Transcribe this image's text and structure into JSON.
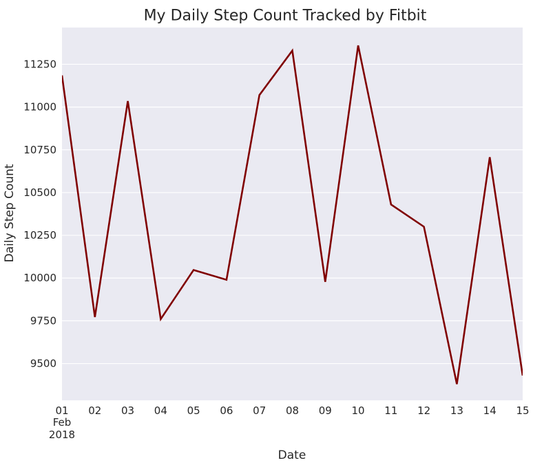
{
  "chart_data": {
    "type": "line",
    "title": "My Daily Step Count Tracked by Fitbit",
    "xlabel": "Date",
    "ylabel": "Daily Step Count",
    "x": [
      "2018-02-01",
      "2018-02-02",
      "2018-02-03",
      "2018-02-04",
      "2018-02-05",
      "2018-02-06",
      "2018-02-07",
      "2018-02-08",
      "2018-02-09",
      "2018-02-10",
      "2018-02-11",
      "2018-02-12",
      "2018-02-13",
      "2018-02-14",
      "2018-02-15"
    ],
    "x_tick_labels": [
      "01",
      "02",
      "03",
      "04",
      "05",
      "06",
      "07",
      "08",
      "09",
      "10",
      "11",
      "12",
      "13",
      "14",
      "15"
    ],
    "x_tick_sublabels": [
      "Feb",
      "2018"
    ],
    "series": [
      {
        "values": [
          11185,
          9772,
          11035,
          9760,
          10047,
          9990,
          11070,
          11330,
          9978,
          11360,
          10430,
          10300,
          9380,
          10707,
          9430
        ]
      }
    ],
    "ylim": [
      9285,
      11465
    ],
    "y_ticks": [
      9500,
      9750,
      10000,
      10250,
      10500,
      10750,
      11000,
      11250
    ],
    "grid": true,
    "line_color": "#800000",
    "background_color": "#eaeaf2",
    "grid_color": "#ffffff"
  }
}
